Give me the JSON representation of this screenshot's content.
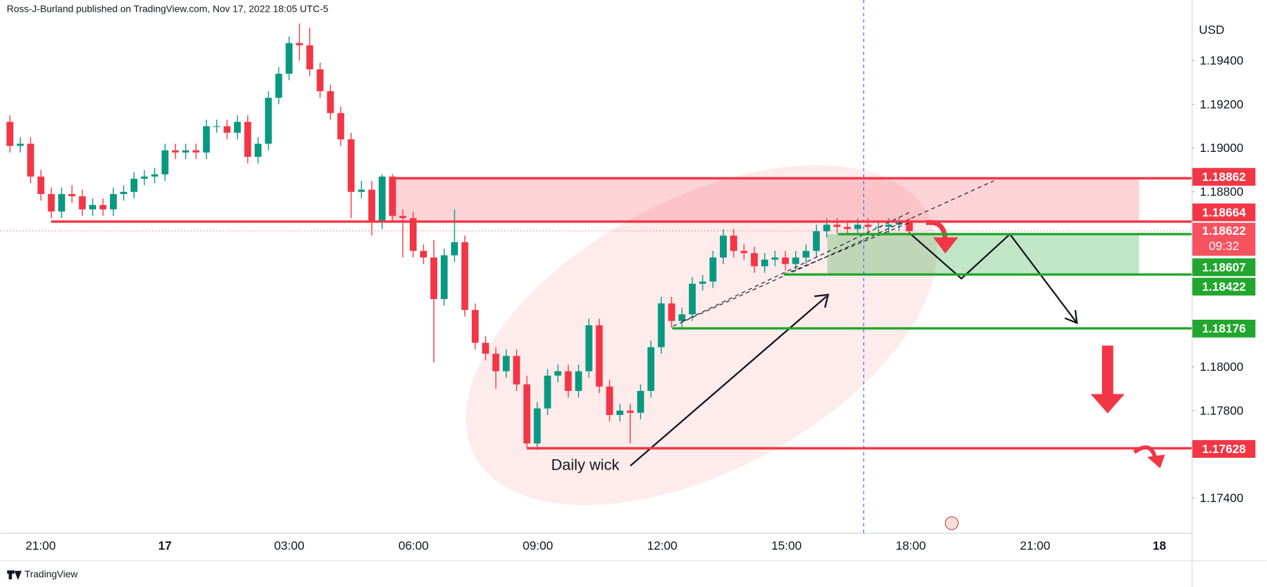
{
  "header": {
    "byline": "Ross-J-Burland published on TradingView.com, Nov 17, 2022 18:05 UTC-5"
  },
  "chart_data": {
    "type": "candlestick",
    "currency": "USD",
    "up_color": "#089981",
    "down_color": "#f23645",
    "candles": [
      [
        1.1912,
        1.1915,
        1.1898,
        1.1901
      ],
      [
        1.1901,
        1.1905,
        1.1898,
        1.1902
      ],
      [
        1.1902,
        1.1905,
        1.1884,
        1.1887
      ],
      [
        1.1887,
        1.189,
        1.1876,
        1.1879
      ],
      [
        1.1879,
        1.1882,
        1.1868,
        1.1871
      ],
      [
        1.1871,
        1.1882,
        1.1868,
        1.1879
      ],
      [
        1.1879,
        1.1883,
        1.1875,
        1.1878
      ],
      [
        1.1878,
        1.1881,
        1.1869,
        1.1872
      ],
      [
        1.1872,
        1.1877,
        1.1869,
        1.1874
      ],
      [
        1.1874,
        1.1877,
        1.1869,
        1.1872
      ],
      [
        1.1872,
        1.1882,
        1.1869,
        1.1879
      ],
      [
        1.1879,
        1.1883,
        1.1876,
        1.188
      ],
      [
        1.188,
        1.1889,
        1.1877,
        1.1886
      ],
      [
        1.1886,
        1.189,
        1.1883,
        1.1887
      ],
      [
        1.1887,
        1.1891,
        1.1884,
        1.1888
      ],
      [
        1.1888,
        1.1902,
        1.1885,
        1.1899
      ],
      [
        1.1899,
        1.1902,
        1.1895,
        1.1898
      ],
      [
        1.1898,
        1.1902,
        1.1895,
        1.1899
      ],
      [
        1.1899,
        1.1902,
        1.1895,
        1.1898
      ],
      [
        1.1898,
        1.1913,
        1.1895,
        1.191
      ],
      [
        1.191,
        1.1913,
        1.1907,
        1.191
      ],
      [
        1.191,
        1.1913,
        1.1904,
        1.1907
      ],
      [
        1.1907,
        1.1915,
        1.1904,
        1.1912
      ],
      [
        1.1912,
        1.1915,
        1.1893,
        1.1896
      ],
      [
        1.1896,
        1.1905,
        1.1893,
        1.1902
      ],
      [
        1.1902,
        1.1926,
        1.1899,
        1.1923
      ],
      [
        1.1923,
        1.1937,
        1.192,
        1.1934
      ],
      [
        1.1934,
        1.1951,
        1.1931,
        1.1948
      ],
      [
        1.1948,
        1.1957,
        1.194,
        1.1947
      ],
      [
        1.1947,
        1.1955,
        1.1933,
        1.1936
      ],
      [
        1.1936,
        1.1939,
        1.1923,
        1.1926
      ],
      [
        1.1926,
        1.1929,
        1.1913,
        1.1916
      ],
      [
        1.1916,
        1.1919,
        1.1901,
        1.1904
      ],
      [
        1.1904,
        1.1907,
        1.1868,
        1.188
      ],
      [
        1.188,
        1.1885,
        1.1877,
        1.1881
      ],
      [
        1.1881,
        1.1885,
        1.186,
        1.1866
      ],
      [
        1.1866,
        1.1888,
        1.1863,
        1.1887
      ],
      [
        1.1887,
        1.1888,
        1.1866,
        1.1869
      ],
      [
        1.1869,
        1.1872,
        1.185,
        1.1868
      ],
      [
        1.1868,
        1.1871,
        1.185,
        1.1853
      ],
      [
        1.1853,
        1.1856,
        1.1847,
        1.185
      ],
      [
        1.185,
        1.1858,
        1.1802,
        1.1831
      ],
      [
        1.1831,
        1.1854,
        1.1828,
        1.1851
      ],
      [
        1.1851,
        1.1872,
        1.1848,
        1.1857
      ],
      [
        1.1857,
        1.186,
        1.1823,
        1.1826
      ],
      [
        1.1826,
        1.1829,
        1.1808,
        1.1811
      ],
      [
        1.1811,
        1.1814,
        1.1803,
        1.1806
      ],
      [
        1.1806,
        1.1809,
        1.179,
        1.1798
      ],
      [
        1.1798,
        1.1808,
        1.1795,
        1.1805
      ],
      [
        1.1805,
        1.1808,
        1.1789,
        1.1792
      ],
      [
        1.1792,
        1.1796,
        1.1763,
        1.1765
      ],
      [
        1.1765,
        1.1784,
        1.1762,
        1.1781
      ],
      [
        1.1781,
        1.1799,
        1.1778,
        1.1796
      ],
      [
        1.1796,
        1.1801,
        1.1793,
        1.1798
      ],
      [
        1.1798,
        1.1801,
        1.1786,
        1.1789
      ],
      [
        1.1789,
        1.1801,
        1.1786,
        1.1798
      ],
      [
        1.1798,
        1.1822,
        1.1795,
        1.1819
      ],
      [
        1.1819,
        1.1822,
        1.1788,
        1.1791
      ],
      [
        1.1791,
        1.1794,
        1.1775,
        1.1778
      ],
      [
        1.1778,
        1.1783,
        1.1775,
        1.178
      ],
      [
        1.178,
        1.1783,
        1.1765,
        1.1779
      ],
      [
        1.1779,
        1.1792,
        1.1776,
        1.1789
      ],
      [
        1.1789,
        1.1812,
        1.1786,
        1.1809
      ],
      [
        1.1809,
        1.1832,
        1.1806,
        1.1829
      ],
      [
        1.1829,
        1.1832,
        1.1818,
        1.1821
      ],
      [
        1.1821,
        1.1827,
        1.1818,
        1.1824
      ],
      [
        1.1824,
        1.1841,
        1.1821,
        1.1838
      ],
      [
        1.1838,
        1.1842,
        1.1835,
        1.1839
      ],
      [
        1.1839,
        1.1853,
        1.1836,
        1.185
      ],
      [
        1.185,
        1.1863,
        1.1847,
        1.186
      ],
      [
        1.186,
        1.1863,
        1.185,
        1.1853
      ],
      [
        1.1853,
        1.1856,
        1.1849,
        1.1852
      ],
      [
        1.1852,
        1.1855,
        1.1843,
        1.1846
      ],
      [
        1.1846,
        1.1852,
        1.1843,
        1.1849
      ],
      [
        1.1849,
        1.1853,
        1.1846,
        1.185
      ],
      [
        1.185,
        1.1853,
        1.1844,
        1.1847
      ],
      [
        1.1847,
        1.1853,
        1.1844,
        1.185
      ],
      [
        1.185,
        1.1856,
        1.1847,
        1.1853
      ],
      [
        1.1853,
        1.1865,
        1.185,
        1.1862
      ],
      [
        1.1862,
        1.1868,
        1.1859,
        1.1865
      ],
      [
        1.1865,
        1.1868,
        1.1861,
        1.1864
      ],
      [
        1.1864,
        1.1867,
        1.186,
        1.1863
      ],
      [
        1.1863,
        1.1868,
        1.186,
        1.1865
      ],
      [
        1.1865,
        1.1868,
        1.1861,
        1.1864
      ],
      [
        1.1864,
        1.1867,
        1.1861,
        1.1864
      ],
      [
        1.1864,
        1.1868,
        1.1861,
        1.1865
      ],
      [
        1.1865,
        1.1868,
        1.1862,
        1.1866
      ],
      [
        1.1866,
        1.1868,
        1.186,
        1.1862
      ]
    ],
    "ylim": [
      1.17241,
      1.19677
    ],
    "yticks": [
      {
        "value": 1.174,
        "label": "1.17400"
      },
      {
        "value": 1.178,
        "label": "1.17800"
      },
      {
        "value": 1.18,
        "label": "1.18000"
      },
      {
        "value": 1.188,
        "label": "1.18800"
      },
      {
        "value": 1.19,
        "label": "1.19000"
      },
      {
        "value": 1.192,
        "label": "1.19200"
      },
      {
        "value": 1.194,
        "label": "1.19400"
      }
    ],
    "xticks": [
      "21:00",
      "17",
      "03:00",
      "06:00",
      "09:00",
      "12:00",
      "15:00",
      "18:00",
      "21:00",
      "18"
    ],
    "levels": [
      {
        "value": 1.18862,
        "color": "#f23645"
      },
      {
        "value": 1.18664,
        "color": "#f23645"
      },
      {
        "value": 1.18607,
        "color": "#22a72e"
      },
      {
        "value": 1.18422,
        "color": "#22a72e"
      },
      {
        "value": 1.18176,
        "color": "#22a72e"
      },
      {
        "value": 1.17628,
        "color": "#f23645"
      }
    ],
    "current_price": 1.18622,
    "current_color": "#f7525f",
    "countdown": "09:32",
    "annotations": [
      "Daily wick"
    ]
  },
  "footer": {
    "brand": "TradingView"
  }
}
